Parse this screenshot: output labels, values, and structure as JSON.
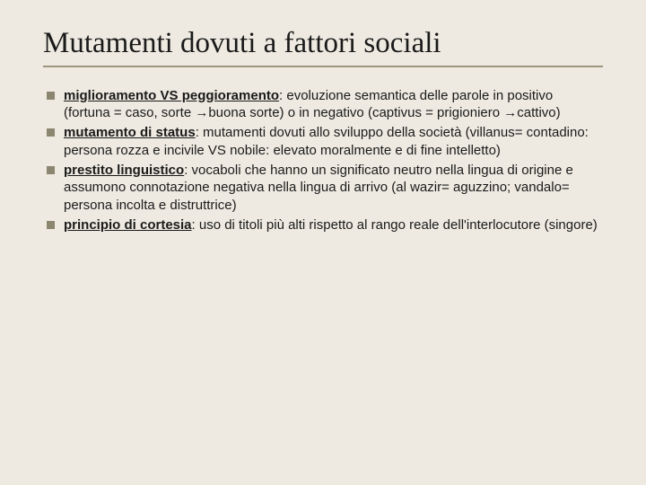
{
  "slide": {
    "background_color": "#eeeae1",
    "title": {
      "text": "Mutamenti dovuti a fattori sociali",
      "font_family": "Times New Roman",
      "font_size": 33,
      "color": "#1a1a1a",
      "underline_color": "#9a9680"
    },
    "bullet": {
      "marker_color": "#8a8670",
      "marker_size": 9,
      "text_color": "#1a1a1a",
      "text_fontsize": 15
    },
    "items": [
      {
        "lead": "miglioramento VS peggioramento",
        "rest": ": evoluzione semantica delle parole in positivo (fortuna = caso, sorte →buona sorte) o in negativo (captivus = prigioniero →cattivo)"
      },
      {
        "lead": "mutamento di status",
        "rest": ": mutamenti dovuti allo sviluppo della società (villanus= contadino: persona rozza e incivile VS nobile: elevato moralmente e di fine intelletto)"
      },
      {
        "lead": "prestito linguistico",
        "rest": ": vocaboli che hanno un significato neutro nella lingua di origine e assumono connotazione negativa nella lingua di arrivo (al wazir= aguzzino; vandalo= persona incolta e distruttrice)"
      },
      {
        "lead": "principio di cortesia",
        "rest": ": uso di titoli più alti rispetto al rango reale dell'interlocutore (singore)"
      }
    ]
  }
}
